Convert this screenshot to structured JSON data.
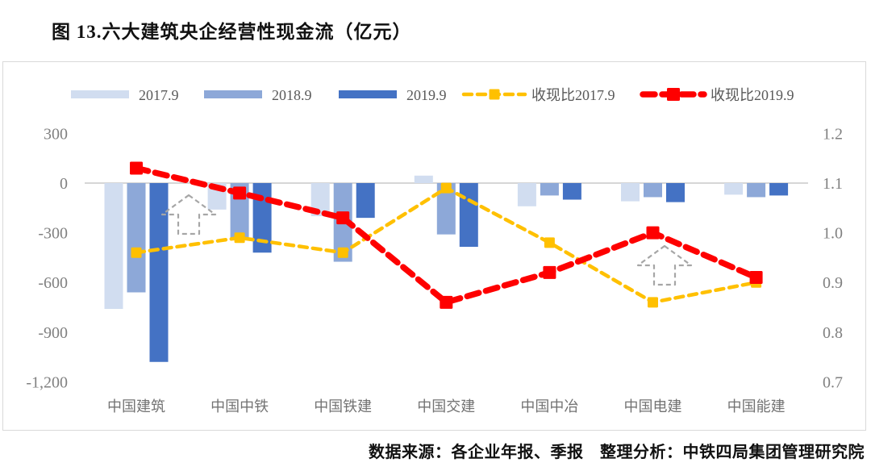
{
  "title": "图 13.六大建筑央企经营性现金流（亿元）",
  "source_note": "数据来源：各企业年报、季报　整理分析：中铁四局集团管理研究院",
  "colors": {
    "bar_2017": "#d1ddf0",
    "bar_2018": "#8da8d8",
    "bar_2019": "#4472c4",
    "line_2017": "#ffc000",
    "line_2019": "#fe0000",
    "axis_text": "#808080",
    "category_text": "#737373",
    "legend_text": "#595959",
    "gridline": "#c9c9c9",
    "border": "#d9d9d9",
    "annotation": "#a6a6a6"
  },
  "chart_data": {
    "type": "bar",
    "subtype": "combo-bar-line",
    "title": "图 13.六大建筑央企经营性现金流（亿元）",
    "categories": [
      "中国建筑",
      "中国中铁",
      "中国铁建",
      "中国交建",
      "中国中冶",
      "中国电建",
      "中国能建"
    ],
    "bar_series": [
      {
        "name": "2017.9",
        "color": "bar_2017",
        "values": [
          -760,
          -160,
          -200,
          45,
          -140,
          -110,
          -70
        ]
      },
      {
        "name": "2018.9",
        "color": "bar_2018",
        "values": [
          -660,
          -330,
          -475,
          -310,
          -75,
          -85,
          -85
        ]
      },
      {
        "name": "2019.9",
        "color": "bar_2019",
        "values": [
          -1080,
          -420,
          -210,
          -385,
          -100,
          -115,
          -75
        ]
      }
    ],
    "line_series": [
      {
        "name": "收现比2017.9",
        "color": "line_2017",
        "axis": "right",
        "values": [
          0.96,
          0.99,
          0.96,
          1.09,
          0.98,
          0.86,
          0.9
        ]
      },
      {
        "name": "收现比2019.9",
        "color": "line_2019",
        "axis": "right",
        "values": [
          1.13,
          1.08,
          1.03,
          0.86,
          0.92,
          1.0,
          0.91
        ]
      }
    ],
    "left_axis": {
      "labels": [
        "300",
        "0",
        "-300",
        "-600",
        "-900",
        "-1,200"
      ],
      "values": [
        300,
        0,
        -300,
        -600,
        -900,
        -1200
      ],
      "range": [
        -1200,
        300
      ]
    },
    "right_axis": {
      "labels": [
        "1.2",
        "1.1",
        "1.0",
        "0.9",
        "0.8",
        "0.7"
      ],
      "values": [
        1.2,
        1.1,
        1.0,
        0.9,
        0.8,
        0.7
      ],
      "range": [
        0.7,
        1.2
      ]
    },
    "grid": "zero-line-only",
    "legend_position": "top",
    "annotations": [
      {
        "shape": "up-arrow",
        "near_category": "中国中铁"
      },
      {
        "shape": "up-arrow",
        "near_category": "中国电建"
      }
    ]
  }
}
